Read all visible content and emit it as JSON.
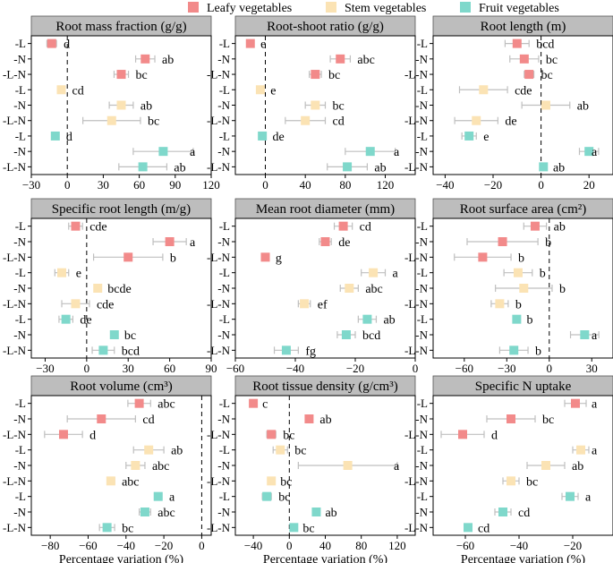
{
  "legend": {
    "placement": "top-center",
    "items": [
      {
        "label": "Leafy vegetables",
        "color": "#F28A8A"
      },
      {
        "label": "Stem vegetables",
        "color": "#FBE3B4"
      },
      {
        "label": "Fruit vegetables",
        "color": "#7FD8CB"
      }
    ]
  },
  "colors": {
    "header_bg": "#BDBDBD",
    "whisker": "#BFBFBF",
    "zero_line": "#000000"
  },
  "chart_data": [
    {
      "type": "errorbar",
      "title": "Root mass fraction (g/g)",
      "categories": [
        "-L",
        "-N",
        "-L-N",
        "-L",
        "-N",
        "-L-N",
        "-L",
        "-N",
        "-L-N"
      ],
      "groups": [
        "Leafy vegetables",
        "Leafy vegetables",
        "Leafy vegetables",
        "Stem vegetables",
        "Stem vegetables",
        "Stem vegetables",
        "Fruit vegetables",
        "Fruit vegetables",
        "Fruit vegetables"
      ],
      "values": [
        -13,
        65,
        45,
        -5,
        45,
        37,
        -10,
        80,
        63
      ],
      "errors": [
        4,
        8,
        6,
        3,
        10,
        24,
        3,
        25,
        20
      ],
      "letters": [
        "d",
        "ab",
        "bc",
        "cd",
        "ab",
        "bc",
        "d",
        "a",
        "ab"
      ],
      "xlim": [
        -30,
        120
      ],
      "xticks": [
        -30,
        0,
        30,
        60,
        90,
        120
      ],
      "xlabel": ""
    },
    {
      "type": "errorbar",
      "title": "Root-shoot ratio (g/g)",
      "categories": [
        "-L",
        "-N",
        "-L-N",
        "-L",
        "-N",
        "-L-N",
        "-L",
        "-N",
        "-L-N"
      ],
      "groups": [
        "Leafy vegetables",
        "Leafy vegetables",
        "Leafy vegetables",
        "Stem vegetables",
        "Stem vegetables",
        "Stem vegetables",
        "Fruit vegetables",
        "Fruit vegetables",
        "Fruit vegetables"
      ],
      "values": [
        -15,
        75,
        50,
        -5,
        50,
        40,
        -3,
        105,
        82
      ],
      "errors": [
        3,
        10,
        6,
        3,
        10,
        20,
        3,
        25,
        20
      ],
      "letters": [
        "e",
        "abc",
        "bc",
        "e",
        "bc",
        "cd",
        "de",
        "a",
        "ab"
      ],
      "xlim": [
        -30,
        150
      ],
      "xticks": [
        0,
        40,
        80,
        120
      ],
      "xlabel": ""
    },
    {
      "type": "errorbar",
      "title": "Root length (m)",
      "categories": [
        "-L",
        "-N",
        "-L-N",
        "-L",
        "-N",
        "-L-N",
        "-L",
        "-N",
        "-L-N"
      ],
      "groups": [
        "Leafy vegetables",
        "Leafy vegetables",
        "Leafy vegetables",
        "Stem vegetables",
        "Stem vegetables",
        "Stem vegetables",
        "Fruit vegetables",
        "Fruit vegetables",
        "Fruit vegetables"
      ],
      "values": [
        -10,
        -7,
        -5,
        -24,
        2,
        -27,
        -30,
        20,
        1
      ],
      "errors": [
        5,
        6,
        2,
        10,
        10,
        9,
        3,
        4,
        1
      ],
      "letters": [
        "bcd",
        "bc",
        "bc",
        "cde",
        "ab",
        "de",
        "e",
        "a",
        "ab"
      ],
      "xlim": [
        -45,
        30
      ],
      "xticks": [
        -40,
        -20,
        0,
        20
      ],
      "xlabel": ""
    },
    {
      "type": "errorbar",
      "title": "Specific root length (m/g)",
      "categories": [
        "-L",
        "-N",
        "-L-N",
        "-L",
        "-N",
        "-L-N",
        "-L",
        "-N",
        "-L-N"
      ],
      "groups": [
        "Leafy vegetables",
        "Leafy vegetables",
        "Leafy vegetables",
        "Stem vegetables",
        "Stem vegetables",
        "Stem vegetables",
        "Fruit vegetables",
        "Fruit vegetables",
        "Fruit vegetables"
      ],
      "values": [
        -8,
        60,
        30,
        -18,
        8,
        -8,
        -15,
        20,
        12
      ],
      "errors": [
        5,
        12,
        25,
        5,
        2,
        10,
        5,
        2,
        8
      ],
      "letters": [
        "cde",
        "a",
        "b",
        "e",
        "bcde",
        "cde",
        "de",
        "bc",
        "bcd"
      ],
      "xlim": [
        -40,
        90
      ],
      "xticks": [
        -30,
        0,
        30,
        60,
        90
      ],
      "xlabel": ""
    },
    {
      "type": "errorbar",
      "title": "Mean root diameter (mm)",
      "categories": [
        "-L",
        "-N",
        "-L-N",
        "-L",
        "-N",
        "-L-N",
        "-L",
        "-N",
        "-L-N"
      ],
      "groups": [
        "Leafy vegetables",
        "Leafy vegetables",
        "Leafy vegetables",
        "Stem vegetables",
        "Stem vegetables",
        "Stem vegetables",
        "Fruit vegetables",
        "Fruit vegetables",
        "Fruit vegetables"
      ],
      "values": [
        -24,
        -30,
        -50,
        -14,
        -22,
        -37,
        -16,
        -23,
        -43
      ],
      "errors": [
        3,
        2,
        1,
        4,
        3,
        2,
        3,
        3,
        4
      ],
      "letters": [
        "cd",
        "de",
        "g",
        "a",
        "abc",
        "ef",
        "ab",
        "bcd",
        "fg"
      ],
      "xlim": [
        -60,
        0
      ],
      "xticks": [
        -60,
        -40,
        -20,
        0
      ],
      "xlabel": ""
    },
    {
      "type": "errorbar",
      "title": "Root surface area (cm²)",
      "categories": [
        "-L",
        "-N",
        "-L-N",
        "-L",
        "-N",
        "-L-N",
        "-L",
        "-N",
        "-L-N"
      ],
      "groups": [
        "Leafy vegetables",
        "Leafy vegetables",
        "Leafy vegetables",
        "Stem vegetables",
        "Stem vegetables",
        "Stem vegetables",
        "Fruit vegetables",
        "Fruit vegetables",
        "Fruit vegetables"
      ],
      "values": [
        -10,
        -33,
        -47,
        -22,
        -18,
        -35,
        -23,
        25,
        -25
      ],
      "errors": [
        8,
        25,
        20,
        10,
        20,
        6,
        2,
        10,
        10
      ],
      "letters": [
        "ab",
        "b",
        "b",
        "b",
        "b",
        "b",
        "b",
        "a",
        "b"
      ],
      "xlim": [
        -82,
        45
      ],
      "xticks": [
        -60,
        -30,
        0,
        30
      ],
      "xlabel": ""
    },
    {
      "type": "errorbar",
      "title": "Root volume (cm³)",
      "categories": [
        "-L",
        "-N",
        "-L-N",
        "-L",
        "-N",
        "-L-N",
        "-L",
        "-N",
        "-L-N"
      ],
      "groups": [
        "Leafy vegetables",
        "Leafy vegetables",
        "Leafy vegetables",
        "Stem vegetables",
        "Stem vegetables",
        "Stem vegetables",
        "Fruit vegetables",
        "Fruit vegetables",
        "Fruit vegetables"
      ],
      "values": [
        -33,
        -53,
        -73,
        -28,
        -35,
        -48,
        -23,
        -30,
        -50
      ],
      "errors": [
        6,
        18,
        10,
        8,
        5,
        2,
        2,
        3,
        4
      ],
      "letters": [
        "abc",
        "cd",
        "d",
        "ab",
        "abc",
        "abc",
        "a",
        "abc",
        "bc"
      ],
      "xlim": [
        -90,
        5
      ],
      "xticks": [
        -80,
        -60,
        -40,
        -20,
        0
      ],
      "xlabel": "Percentage variation (%)"
    },
    {
      "type": "errorbar",
      "title": "Root tissue density (g/cm³)",
      "categories": [
        "-L",
        "-N",
        "-L-N",
        "-L",
        "-N",
        "-L-N",
        "-L",
        "-N",
        "-L-N"
      ],
      "groups": [
        "Leafy vegetables",
        "Leafy vegetables",
        "Leafy vegetables",
        "Stem vegetables",
        "Stem vegetables",
        "Stem vegetables",
        "Fruit vegetables",
        "Fruit vegetables",
        "Fruit vegetables"
      ],
      "values": [
        -40,
        22,
        -20,
        -10,
        65,
        -20,
        -25,
        30,
        5
      ],
      "errors": [
        2,
        4,
        5,
        8,
        55,
        2,
        5,
        2,
        2
      ],
      "letters": [
        "c",
        "ab",
        "bc",
        "bc",
        "a",
        "bc",
        "bc",
        "ab",
        "bc"
      ],
      "xlim": [
        -60,
        140
      ],
      "xticks": [
        -40,
        0,
        40,
        80,
        120
      ],
      "xlabel": "Percentage variation (%)"
    },
    {
      "type": "errorbar",
      "title": "Specific N uptake",
      "categories": [
        "-L",
        "-N",
        "-L-N",
        "-L",
        "-N",
        "-L-N",
        "-L",
        "-N",
        "-L-N"
      ],
      "groups": [
        "Leafy vegetables",
        "Leafy vegetables",
        "Leafy vegetables",
        "Stem vegetables",
        "Stem vegetables",
        "Stem vegetables",
        "Fruit vegetables",
        "Fruit vegetables",
        "Fruit vegetables"
      ],
      "values": [
        -19,
        -43,
        -61,
        -17,
        -30,
        -43,
        -21,
        -46,
        -59
      ],
      "errors": [
        4,
        9,
        8,
        3,
        7,
        3,
        3,
        3,
        1
      ],
      "letters": [
        "a",
        "bc",
        "d",
        "a",
        "ab",
        "bc",
        "a",
        "cd",
        "cd"
      ],
      "xlim": [
        -72,
        -5
      ],
      "xticks": [
        -60,
        -40,
        -20
      ],
      "xlabel": "Percentage variation (%)"
    }
  ]
}
